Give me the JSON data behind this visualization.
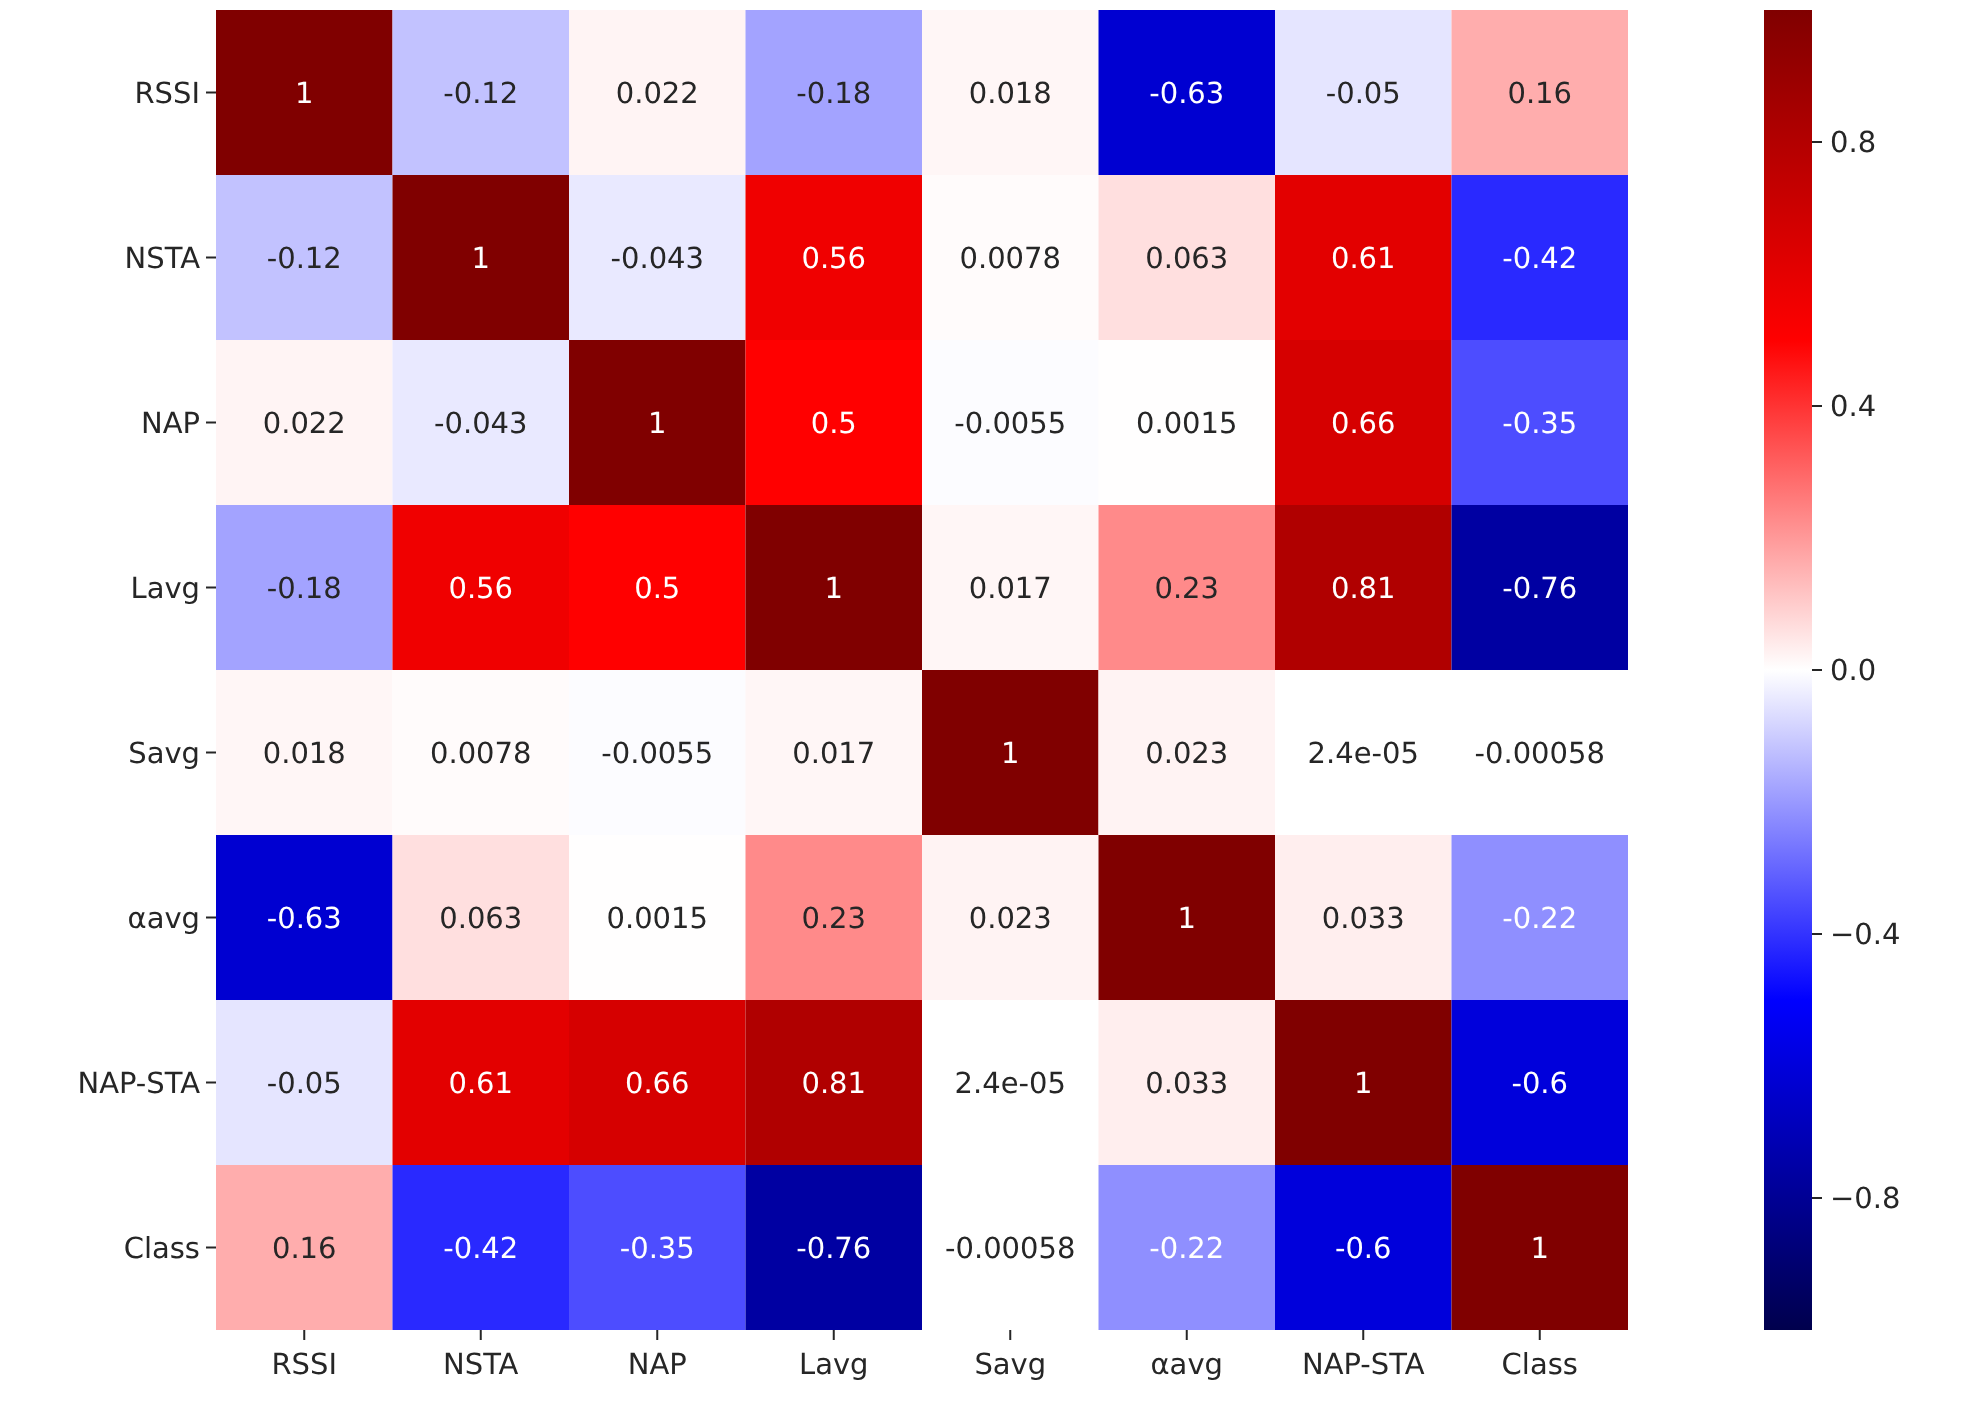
{
  "chart_data": {
    "type": "heatmap",
    "categories": [
      "RSSI",
      "NSTA",
      "NAP",
      "Lavg",
      "Savg",
      "αavg",
      "NAP-STA",
      "Class"
    ],
    "y_categories": [
      "RSSI",
      "NSTA",
      "NAP",
      "Lavg",
      "Savg",
      "αavg",
      "NAP-STA",
      "Class"
    ],
    "cells": [
      [
        1,
        -0.12,
        0.022,
        -0.18,
        0.018,
        -0.63,
        -0.05,
        0.16
      ],
      [
        -0.12,
        1,
        -0.043,
        0.56,
        0.0078,
        0.063,
        0.61,
        -0.42
      ],
      [
        0.022,
        -0.043,
        1,
        0.5,
        -0.0055,
        0.0015,
        0.66,
        -0.35
      ],
      [
        -0.18,
        0.56,
        0.5,
        1,
        0.017,
        0.23,
        0.81,
        -0.76
      ],
      [
        0.018,
        0.0078,
        -0.0055,
        0.017,
        1,
        0.023,
        2.4e-05,
        -0.00058
      ],
      [
        -0.63,
        0.063,
        0.0015,
        0.23,
        0.023,
        1,
        0.033,
        -0.22
      ],
      [
        -0.05,
        0.61,
        0.66,
        0.81,
        2.4e-05,
        0.033,
        1,
        -0.6
      ],
      [
        0.16,
        -0.42,
        -0.35,
        -0.76,
        -0.00058,
        -0.22,
        -0.6,
        1
      ]
    ],
    "cell_labels": [
      [
        "1",
        "-0.12",
        "0.022",
        "-0.18",
        "0.018",
        "-0.63",
        "-0.05",
        "0.16"
      ],
      [
        "-0.12",
        "1",
        "-0.043",
        "0.56",
        "0.0078",
        "0.063",
        "0.61",
        "-0.42"
      ],
      [
        "0.022",
        "-0.043",
        "1",
        "0.5",
        "-0.0055",
        "0.0015",
        "0.66",
        "-0.35"
      ],
      [
        "-0.18",
        "0.56",
        "0.5",
        "1",
        "0.017",
        "0.23",
        "0.81",
        "-0.76"
      ],
      [
        "0.018",
        "0.0078",
        "-0.0055",
        "0.017",
        "1",
        "0.023",
        "2.4e-05",
        "-0.00058"
      ],
      [
        "-0.63",
        "0.063",
        "0.0015",
        "0.23",
        "0.023",
        "1",
        "0.033",
        "-0.22"
      ],
      [
        "-0.05",
        "0.61",
        "0.66",
        "0.81",
        "2.4e-05",
        "0.033",
        "1",
        "-0.6"
      ],
      [
        "0.16",
        "-0.42",
        "-0.35",
        "-0.76",
        "-0.00058",
        "-0.22",
        "-0.6",
        "1"
      ]
    ],
    "clim": [
      -1,
      1
    ],
    "cticks": [
      {
        "value": -0.8,
        "label": "−0.8"
      },
      {
        "value": -0.4,
        "label": "−0.4"
      },
      {
        "value": 0,
        "label": "0.0"
      },
      {
        "value": 0.4,
        "label": "0.4"
      },
      {
        "value": 0.8,
        "label": "0.8"
      }
    ]
  }
}
